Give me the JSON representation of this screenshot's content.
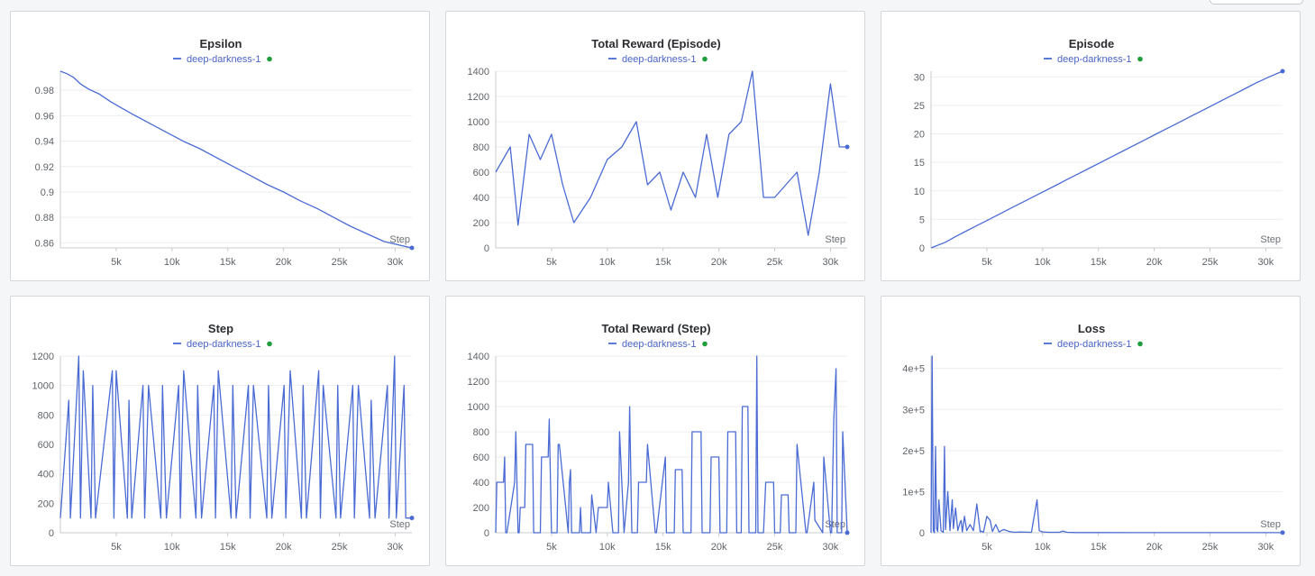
{
  "colors": {
    "series": "#4a6bd4",
    "legend_text": "#4a64c7",
    "status_dot": "#1f9d3a"
  },
  "legend_icon": "line-swatch-icon",
  "status_icon": "online-dot-icon",
  "chart_data": [
    {
      "type": "line",
      "title": "Epsilon",
      "legend": "deep-darkness-1",
      "xlabel": "Step",
      "xlim": [
        0,
        31500
      ],
      "ylim": [
        0.856,
        0.995
      ],
      "xticks": [
        "5k",
        "10k",
        "15k",
        "20k",
        "25k",
        "30k"
      ],
      "yticks": [
        "0.86",
        "0.88",
        "0.9",
        "0.92",
        "0.94",
        "0.96",
        "0.98"
      ],
      "x": [
        0,
        600,
        1200,
        1800,
        2500,
        3500,
        4500,
        5500,
        6500,
        8000,
        9500,
        11000,
        12500,
        14000,
        15500,
        17000,
        18500,
        20000,
        21500,
        23000,
        24500,
        26000,
        27500,
        29000,
        30500,
        31500
      ],
      "y": [
        0.995,
        0.993,
        0.99,
        0.985,
        0.981,
        0.977,
        0.971,
        0.966,
        0.961,
        0.954,
        0.947,
        0.94,
        0.934,
        0.927,
        0.92,
        0.913,
        0.906,
        0.9,
        0.893,
        0.887,
        0.88,
        0.873,
        0.867,
        0.861,
        0.858,
        0.856
      ]
    },
    {
      "type": "line",
      "title": "Total Reward (Episode)",
      "legend": "deep-darkness-1",
      "xlabel": "Step",
      "xlim": [
        0,
        31500
      ],
      "ylim": [
        0,
        1400
      ],
      "xticks": [
        "5k",
        "10k",
        "15k",
        "20k",
        "25k",
        "30k"
      ],
      "yticks": [
        "0",
        "200",
        "400",
        "600",
        "800",
        "1000",
        "1200",
        "1400"
      ],
      "x": [
        0,
        1300,
        2000,
        3000,
        4000,
        5000,
        6000,
        7000,
        8500,
        10000,
        11300,
        12600,
        13600,
        14700,
        15700,
        16800,
        17900,
        18900,
        19900,
        20900,
        22000,
        23000,
        24000,
        25000,
        26000,
        27000,
        28000,
        29000,
        30000,
        30800,
        31500
      ],
      "y": [
        600,
        800,
        180,
        900,
        700,
        900,
        500,
        200,
        400,
        700,
        800,
        1000,
        500,
        600,
        300,
        600,
        400,
        900,
        400,
        900,
        1000,
        1400,
        400,
        400,
        500,
        600,
        100,
        600,
        1300,
        800,
        800
      ]
    },
    {
      "type": "line",
      "title": "Episode",
      "legend": "deep-darkness-1",
      "xlabel": "Step",
      "xlim": [
        0,
        31500
      ],
      "ylim": [
        0,
        31
      ],
      "xticks": [
        "5k",
        "10k",
        "15k",
        "20k",
        "25k",
        "30k"
      ],
      "yticks": [
        "0",
        "5",
        "10",
        "15",
        "20",
        "25",
        "30"
      ],
      "x": [
        0,
        1300,
        2200,
        3200,
        4200,
        5200,
        6200,
        7200,
        8200,
        9200,
        10200,
        11200,
        12200,
        13200,
        14200,
        15200,
        16200,
        17200,
        18200,
        19200,
        20200,
        21200,
        22200,
        23200,
        24200,
        25200,
        26200,
        27200,
        28200,
        29200,
        30300,
        31500
      ],
      "y": [
        0,
        1,
        2,
        3,
        4,
        5,
        6,
        7,
        8,
        9,
        10,
        11,
        12,
        13,
        14,
        15,
        16,
        17,
        18,
        19,
        20,
        21,
        22,
        23,
        24,
        25,
        26,
        27,
        28,
        29,
        30,
        31
      ]
    },
    {
      "type": "line",
      "title": "Step",
      "legend": "deep-darkness-1",
      "xlabel": "Step",
      "xlim": [
        0,
        31500
      ],
      "ylim": [
        0,
        1200
      ],
      "xticks": [
        "5k",
        "10k",
        "15k",
        "20k",
        "25k",
        "30k"
      ],
      "yticks": [
        "0",
        "200",
        "400",
        "600",
        "800",
        "1000",
        "1200"
      ],
      "x": [
        0,
        750,
        900,
        1650,
        1800,
        2050,
        2750,
        2900,
        3150,
        4650,
        4800,
        5000,
        6000,
        6150,
        6400,
        7400,
        7550,
        7900,
        9000,
        9150,
        9500,
        10600,
        10750,
        11050,
        12150,
        12300,
        12650,
        13750,
        13900,
        14150,
        15300,
        15450,
        15750,
        16850,
        17000,
        17300,
        18500,
        18650,
        18950,
        20050,
        20200,
        20600,
        21600,
        21750,
        22050,
        23150,
        23300,
        23550,
        24700,
        24850,
        25100,
        26200,
        26350,
        26700,
        27700,
        27850,
        28200,
        29300,
        29450,
        29950,
        30100,
        30800,
        30950,
        31500
      ],
      "y": [
        100,
        900,
        100,
        1200,
        100,
        1100,
        100,
        1000,
        100,
        1100,
        100,
        1100,
        100,
        900,
        100,
        1000,
        100,
        1000,
        100,
        1000,
        100,
        1000,
        100,
        1100,
        100,
        1000,
        100,
        1000,
        100,
        1100,
        100,
        1000,
        100,
        1000,
        100,
        1000,
        100,
        1000,
        100,
        1000,
        100,
        1100,
        100,
        1000,
        100,
        1100,
        100,
        1000,
        100,
        1000,
        100,
        1000,
        100,
        1000,
        100,
        900,
        100,
        1000,
        100,
        1200,
        100,
        1000,
        100,
        100
      ]
    },
    {
      "type": "line",
      "title": "Total Reward (Step)",
      "legend": "deep-darkness-1",
      "xlabel": "Step",
      "xlim": [
        0,
        31500
      ],
      "ylim": [
        0,
        1400
      ],
      "xticks": [
        "5k",
        "10k",
        "15k",
        "20k",
        "25k",
        "30k"
      ],
      "yticks": [
        "0",
        "200",
        "400",
        "600",
        "800",
        "1000",
        "1200",
        "1400"
      ],
      "x": [
        0,
        100,
        700,
        800,
        900,
        1000,
        1700,
        1800,
        2000,
        2100,
        2200,
        2600,
        2700,
        3300,
        3400,
        4000,
        4100,
        4700,
        4800,
        5000,
        5500,
        5600,
        5700,
        6500,
        6600,
        6700,
        6800,
        7500,
        7600,
        7700,
        8500,
        8600,
        9000,
        9200,
        10000,
        10100,
        10500,
        11000,
        11100,
        11500,
        11900,
        12000,
        12200,
        12700,
        12800,
        13500,
        13600,
        14300,
        14400,
        15200,
        15300,
        16000,
        16100,
        16700,
        16800,
        17500,
        17600,
        18400,
        18500,
        19200,
        19300,
        20000,
        20100,
        20700,
        20800,
        21500,
        21600,
        22000,
        22100,
        22600,
        22700,
        23300,
        23400,
        23500,
        24000,
        24200,
        24900,
        25000,
        25500,
        25600,
        26200,
        26300,
        26900,
        27000,
        27800,
        27900,
        28500,
        28600,
        29300,
        29400,
        30000,
        30100,
        30300,
        30500,
        30600,
        31000,
        31100,
        31500
      ],
      "y": [
        0,
        400,
        400,
        600,
        0,
        0,
        400,
        800,
        0,
        0,
        200,
        200,
        700,
        700,
        0,
        0,
        600,
        600,
        900,
        0,
        0,
        700,
        700,
        0,
        400,
        500,
        0,
        0,
        200,
        0,
        0,
        300,
        0,
        200,
        200,
        400,
        0,
        0,
        800,
        0,
        400,
        1000,
        0,
        0,
        400,
        400,
        700,
        0,
        0,
        600,
        0,
        0,
        500,
        500,
        0,
        0,
        800,
        800,
        0,
        0,
        600,
        600,
        0,
        0,
        800,
        800,
        0,
        0,
        1000,
        1000,
        0,
        0,
        1400,
        0,
        0,
        400,
        400,
        0,
        0,
        300,
        300,
        0,
        0,
        700,
        0,
        0,
        400,
        100,
        0,
        600,
        0,
        0,
        900,
        1300,
        0,
        0,
        800,
        0
      ]
    },
    {
      "type": "line",
      "title": "Loss",
      "legend": "deep-darkness-1",
      "xlabel": "Step",
      "xlim": [
        0,
        31500
      ],
      "ylim": [
        0,
        430000
      ],
      "xticks": [
        "5k",
        "10k",
        "15k",
        "20k",
        "25k",
        "30k"
      ],
      "yticks": [
        "0",
        "1e+5",
        "2e+5",
        "3e+5",
        "4e+5"
      ],
      "x": [
        0,
        100,
        200,
        300,
        400,
        500,
        600,
        700,
        900,
        1100,
        1200,
        1300,
        1500,
        1700,
        1900,
        2000,
        2200,
        2400,
        2600,
        2700,
        2800,
        3000,
        3200,
        3500,
        3800,
        4100,
        4400,
        4500,
        4700,
        5000,
        5300,
        5500,
        5800,
        6100,
        6500,
        7000,
        7500,
        8000,
        9000,
        9500,
        9700,
        10000,
        10500,
        11500,
        11800,
        12200,
        13000,
        15000,
        18000,
        22000,
        26000,
        31500
      ],
      "y": [
        0,
        430000,
        5000,
        0,
        210000,
        10000,
        3000,
        80000,
        5000,
        1000,
        210000,
        8000,
        100000,
        5000,
        80000,
        10000,
        60000,
        5000,
        25000,
        30000,
        2000,
        40000,
        5000,
        20000,
        5000,
        70000,
        2000,
        4000,
        1000,
        40000,
        30000,
        3000,
        20000,
        2000,
        8000,
        3000,
        1000,
        2000,
        1000,
        80000,
        5000,
        2000,
        1000,
        1000,
        4000,
        1000,
        500,
        400,
        300,
        200,
        200,
        200
      ]
    }
  ]
}
